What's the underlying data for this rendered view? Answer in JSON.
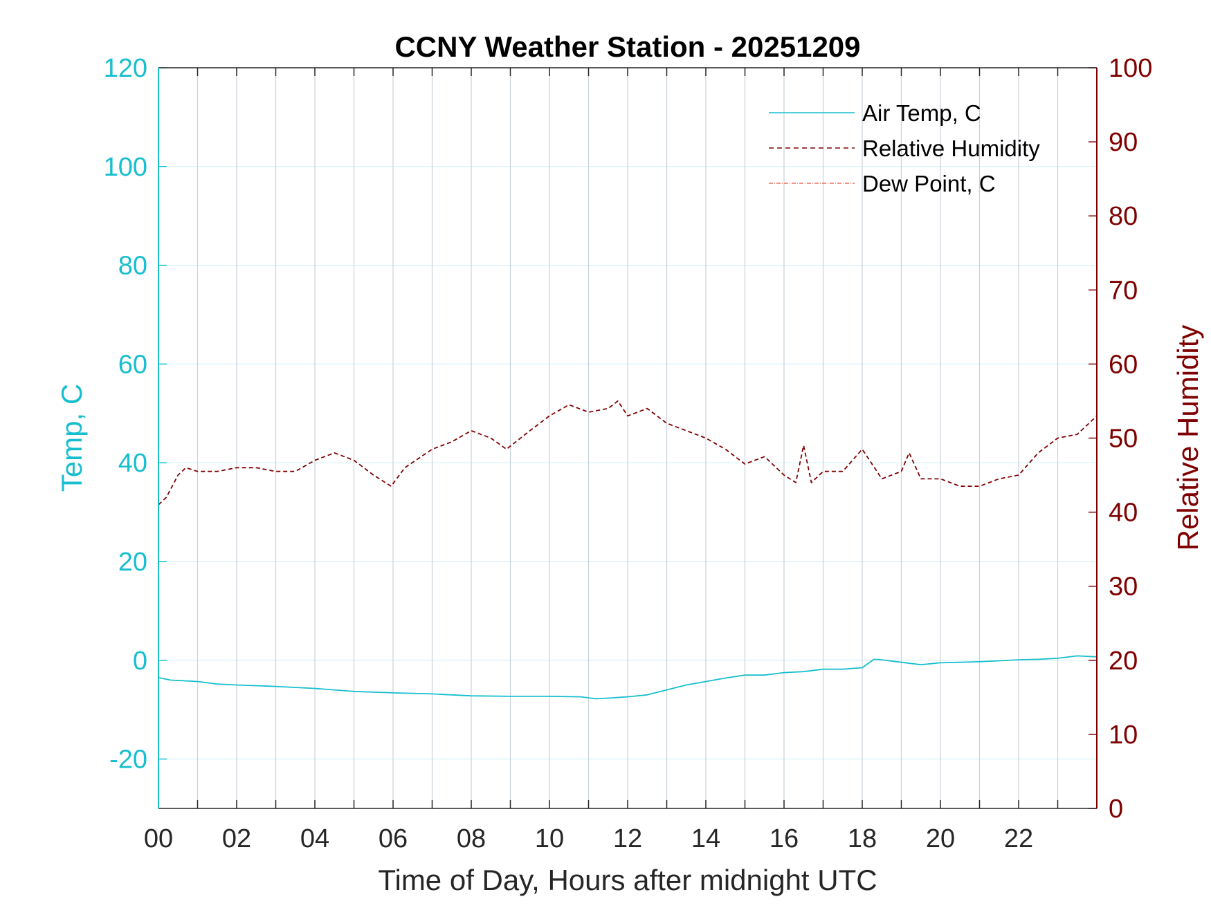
{
  "colors": {
    "air_temp": "#17becf",
    "relative_humidity": "#7f0000",
    "dew_point": "#e8553c",
    "left_axis": "#17becf",
    "right_axis": "#7f0000",
    "grid": "#c8d2dc",
    "hgrid": "#d6f2f7"
  },
  "chart_data": {
    "type": "line",
    "title": "CCNY Weather Station - 20251209",
    "xlabel": "Time of Day, Hours after midnight UTC",
    "ylabel_left": "Temp, C",
    "ylabel_right": "Relative Humidity",
    "xlim": [
      0,
      24
    ],
    "ylim_left": [
      -30,
      120
    ],
    "ylim_right": [
      0,
      100
    ],
    "x_ticks": [
      "00",
      "02",
      "04",
      "06",
      "08",
      "10",
      "12",
      "14",
      "16",
      "18",
      "20",
      "22"
    ],
    "y_left_ticks": [
      "120",
      "100",
      "80",
      "60",
      "40",
      "20",
      "0",
      "-20"
    ],
    "y_right_ticks": [
      "100",
      "90",
      "80",
      "70",
      "60",
      "50",
      "40",
      "30",
      "20",
      "10",
      "0"
    ],
    "grid": true,
    "legend_position": "top-right",
    "series": [
      {
        "name": "Air Temp, C",
        "axis": "left",
        "style": "solid",
        "x": [
          0,
          0.3,
          1,
          1.5,
          2,
          3,
          4,
          5,
          6,
          7,
          8,
          9,
          10,
          10.8,
          11.2,
          11.6,
          12,
          12.5,
          13,
          13.5,
          14,
          14.5,
          15,
          15.5,
          16,
          16.5,
          17,
          17.5,
          18,
          18.3,
          18.5,
          19,
          19.5,
          20,
          20.5,
          21,
          21.5,
          22,
          22.5,
          23,
          23.5,
          24
        ],
        "values": [
          -3.5,
          -4,
          -4.3,
          -4.8,
          -5,
          -5.3,
          -5.7,
          -6.3,
          -6.6,
          -6.8,
          -7.2,
          -7.3,
          -7.3,
          -7.4,
          -7.8,
          -7.6,
          -7.4,
          -7,
          -6,
          -5,
          -4.3,
          -3.6,
          -3,
          -3,
          -2.5,
          -2.3,
          -1.8,
          -1.8,
          -1.5,
          0.2,
          0.1,
          -0.4,
          -0.9,
          -0.5,
          -0.4,
          -0.3,
          -0.1,
          0.1,
          0.2,
          0.4,
          0.9,
          0.7
        ]
      },
      {
        "name": "Relative Humidity",
        "axis": "right",
        "style": "dashed",
        "x": [
          0,
          0.2,
          0.5,
          0.7,
          1,
          1.5,
          2,
          2.5,
          3,
          3.5,
          4,
          4.5,
          5,
          5.5,
          5.95,
          6.3,
          7,
          7.5,
          8,
          8.5,
          8.9,
          9.5,
          10,
          10.5,
          11,
          11.5,
          11.75,
          12,
          12.5,
          13,
          13.5,
          14,
          14.5,
          15,
          15.5,
          16,
          16.3,
          16.5,
          16.7,
          17,
          17.5,
          18,
          18.5,
          19,
          19.2,
          19.5,
          20,
          20.5,
          21,
          21.5,
          22,
          22.5,
          23,
          23.5,
          24
        ],
        "values": [
          41,
          42,
          45,
          46,
          45.5,
          45.5,
          46,
          46,
          45.5,
          45.5,
          47,
          48,
          47,
          45,
          43.5,
          46,
          48.5,
          49.5,
          51,
          50,
          48.5,
          51,
          53,
          54.5,
          53.5,
          54,
          55,
          53,
          54,
          52,
          51,
          50,
          48.5,
          46.5,
          47.5,
          45,
          44,
          49,
          44,
          45.5,
          45.5,
          48.5,
          44.5,
          45.5,
          48,
          44.5,
          44.5,
          43.5,
          43.5,
          44.5,
          45,
          48,
          50,
          50.5,
          53
        ]
      },
      {
        "name": "Dew Point, C",
        "axis": "left",
        "style": "dash-dot",
        "x": [],
        "values": []
      }
    ]
  }
}
